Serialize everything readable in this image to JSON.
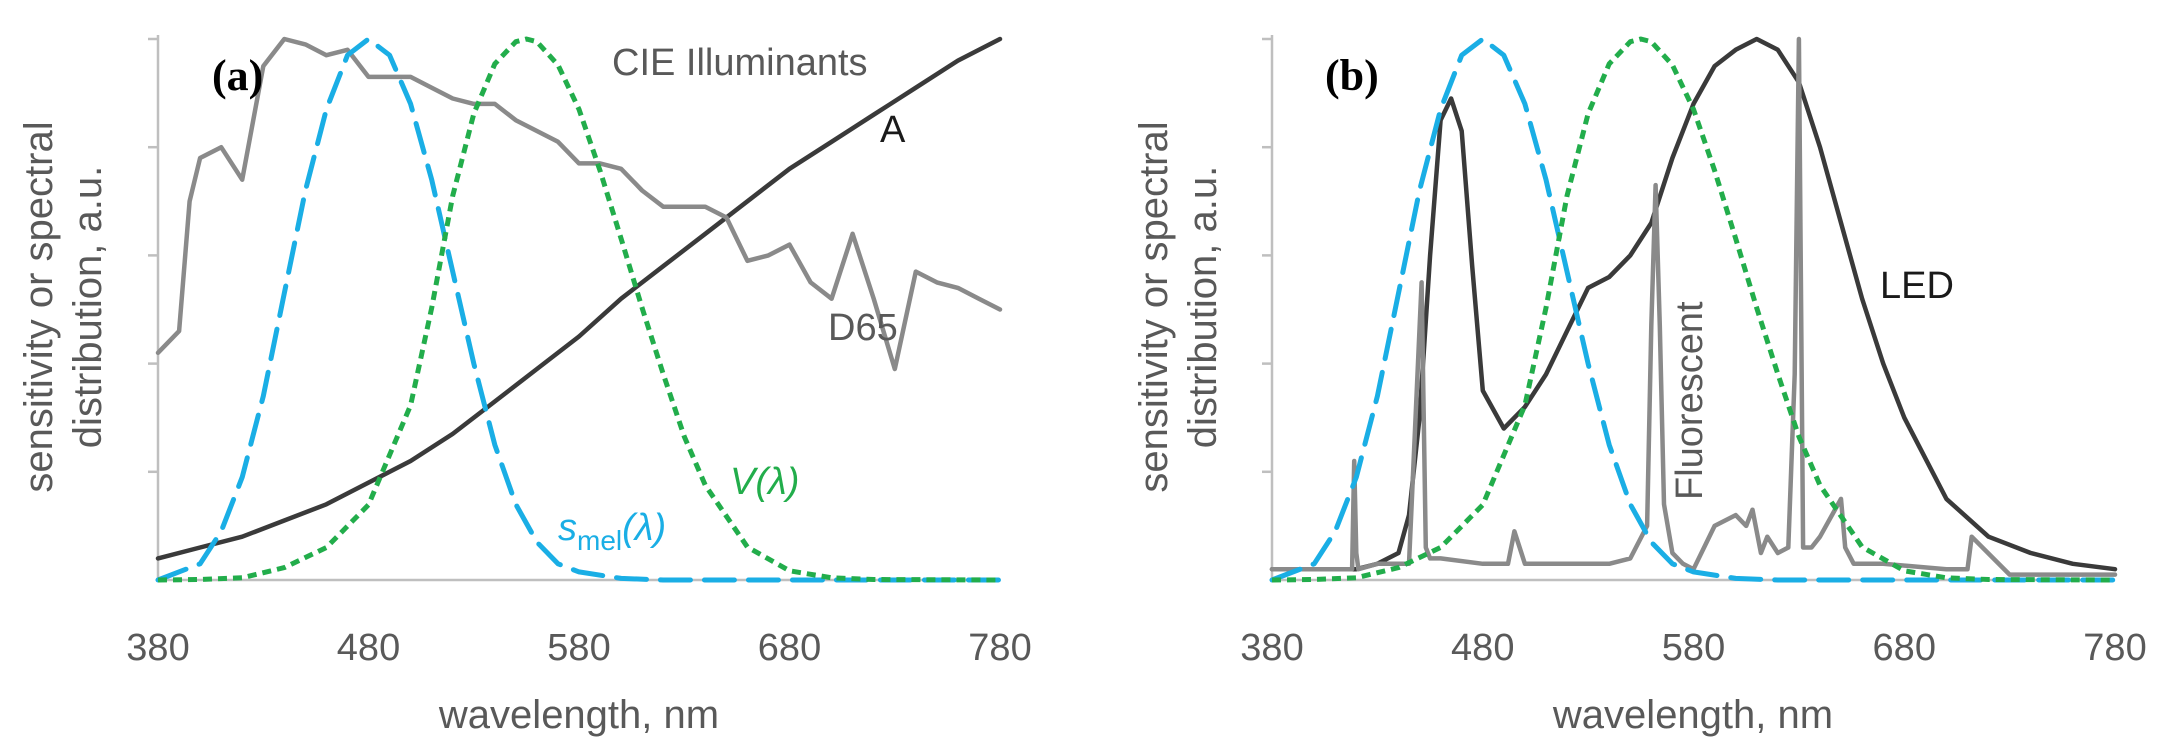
{
  "chart_data": [
    {
      "type": "line",
      "panel_label": "(a)",
      "xlabel": "wavelength, nm",
      "ylabel_lines": [
        "sensitivity or spectral",
        "distribution, a.u."
      ],
      "xlim": [
        380,
        780
      ],
      "ylim": [
        0,
        1
      ],
      "x_ticks": [
        380,
        480,
        580,
        680,
        780
      ],
      "y_gridlines": false,
      "annotations": {
        "title": "CIE Illuminants",
        "a_label": "A",
        "d65_label": "D65",
        "smel_main": "s",
        "smel_sub": "mel",
        "smel_tail": "(λ)",
        "v_main": "V",
        "v_tail": "(λ)"
      },
      "series": [
        {
          "name": "CIE Illuminant A",
          "color": "#3a3a3a",
          "style": "solid",
          "x": [
            380,
            400,
            420,
            440,
            460,
            480,
            500,
            520,
            540,
            560,
            580,
            600,
            620,
            640,
            660,
            680,
            700,
            720,
            740,
            760,
            780
          ],
          "values": [
            0.04,
            0.06,
            0.08,
            0.11,
            0.14,
            0.18,
            0.22,
            0.27,
            0.33,
            0.39,
            0.45,
            0.52,
            0.58,
            0.64,
            0.7,
            0.76,
            0.81,
            0.86,
            0.91,
            0.96,
            1.0
          ]
        },
        {
          "name": "CIE Illuminant D65",
          "color": "#8a8a8a",
          "style": "solid",
          "x": [
            380,
            390,
            395,
            400,
            410,
            420,
            430,
            440,
            450,
            460,
            470,
            480,
            490,
            500,
            510,
            520,
            530,
            540,
            550,
            560,
            570,
            580,
            590,
            600,
            610,
            620,
            630,
            640,
            650,
            660,
            670,
            680,
            690,
            700,
            710,
            720,
            730,
            740,
            750,
            760,
            770,
            780
          ],
          "values": [
            0.42,
            0.46,
            0.7,
            0.78,
            0.8,
            0.74,
            0.95,
            1.0,
            0.99,
            0.97,
            0.98,
            0.93,
            0.93,
            0.93,
            0.91,
            0.89,
            0.88,
            0.88,
            0.85,
            0.83,
            0.81,
            0.77,
            0.77,
            0.76,
            0.72,
            0.69,
            0.69,
            0.69,
            0.67,
            0.59,
            0.6,
            0.62,
            0.55,
            0.52,
            0.64,
            0.52,
            0.39,
            0.57,
            0.55,
            0.54,
            0.52,
            0.5
          ]
        },
        {
          "name": "s_mel(λ)",
          "color": "#1aaee5",
          "style": "dashed",
          "x": [
            380,
            400,
            410,
            420,
            430,
            440,
            450,
            460,
            470,
            480,
            490,
            500,
            510,
            520,
            530,
            540,
            550,
            560,
            570,
            580,
            600,
            620,
            640,
            660,
            700,
            780
          ],
          "values": [
            0.0,
            0.03,
            0.09,
            0.19,
            0.34,
            0.53,
            0.72,
            0.87,
            0.97,
            1.0,
            0.97,
            0.88,
            0.74,
            0.57,
            0.4,
            0.25,
            0.14,
            0.07,
            0.03,
            0.015,
            0.003,
            0.0,
            0.0,
            0.0,
            0.0,
            0.0
          ]
        },
        {
          "name": "V(λ)",
          "color": "#22ad4b",
          "style": "dotted",
          "x": [
            380,
            400,
            420,
            440,
            460,
            480,
            500,
            510,
            520,
            530,
            540,
            550,
            555,
            560,
            570,
            580,
            590,
            600,
            610,
            620,
            630,
            640,
            660,
            680,
            700,
            720,
            780
          ],
          "values": [
            0.0,
            0.001,
            0.004,
            0.023,
            0.06,
            0.139,
            0.323,
            0.503,
            0.71,
            0.862,
            0.954,
            0.995,
            1.0,
            0.995,
            0.952,
            0.87,
            0.757,
            0.631,
            0.503,
            0.381,
            0.265,
            0.175,
            0.061,
            0.017,
            0.004,
            0.001,
            0.0
          ]
        }
      ]
    },
    {
      "type": "line",
      "panel_label": "(b)",
      "xlabel": "wavelength, nm",
      "ylabel_lines": [
        "sensitivity or spectral",
        "distribution, a.u."
      ],
      "xlim": [
        380,
        780
      ],
      "ylim": [
        0,
        1
      ],
      "x_ticks": [
        380,
        480,
        580,
        680,
        780
      ],
      "y_gridlines": false,
      "annotations": {
        "fluorescent_label": "Fluorescent",
        "led_label": "LED"
      },
      "series": [
        {
          "name": "LED",
          "color": "#3a3a3a",
          "style": "solid",
          "x": [
            380,
            420,
            430,
            440,
            445,
            450,
            455,
            460,
            465,
            470,
            475,
            480,
            490,
            500,
            510,
            520,
            530,
            540,
            550,
            560,
            570,
            580,
            590,
            600,
            610,
            620,
            630,
            640,
            650,
            660,
            670,
            680,
            700,
            720,
            740,
            760,
            780
          ],
          "values": [
            0.02,
            0.02,
            0.03,
            0.05,
            0.12,
            0.3,
            0.6,
            0.85,
            0.89,
            0.83,
            0.58,
            0.35,
            0.28,
            0.32,
            0.38,
            0.46,
            0.54,
            0.56,
            0.6,
            0.66,
            0.78,
            0.88,
            0.95,
            0.98,
            1.0,
            0.98,
            0.92,
            0.8,
            0.66,
            0.52,
            0.4,
            0.3,
            0.15,
            0.08,
            0.05,
            0.03,
            0.02
          ]
        },
        {
          "name": "Fluorescent",
          "color": "#8a8a8a",
          "style": "solid",
          "x": [
            380,
            400,
            418,
            419,
            420,
            421,
            430,
            445,
            451,
            453,
            455,
            460,
            480,
            492,
            495,
            500,
            520,
            540,
            550,
            558,
            560,
            562,
            564,
            566,
            570,
            575,
            580,
            590,
            600,
            605,
            608,
            612,
            615,
            620,
            625,
            628,
            630,
            632,
            636,
            640,
            650,
            652,
            656,
            670,
            700,
            710,
            712,
            730,
            760,
            780
          ],
          "values": [
            0.02,
            0.02,
            0.02,
            0.22,
            0.05,
            0.02,
            0.03,
            0.03,
            0.55,
            0.06,
            0.04,
            0.04,
            0.03,
            0.03,
            0.09,
            0.03,
            0.03,
            0.03,
            0.04,
            0.1,
            0.47,
            0.73,
            0.47,
            0.14,
            0.05,
            0.03,
            0.02,
            0.1,
            0.12,
            0.1,
            0.13,
            0.05,
            0.08,
            0.05,
            0.06,
            0.38,
            1.0,
            0.06,
            0.06,
            0.08,
            0.15,
            0.06,
            0.03,
            0.03,
            0.02,
            0.02,
            0.08,
            0.01,
            0.01,
            0.01
          ]
        },
        {
          "name": "s_mel(λ)",
          "color": "#1aaee5",
          "style": "dashed",
          "x": [
            380,
            400,
            410,
            420,
            430,
            440,
            450,
            460,
            470,
            480,
            490,
            500,
            510,
            520,
            530,
            540,
            550,
            560,
            570,
            580,
            600,
            620,
            640,
            660,
            700,
            780
          ],
          "values": [
            0.0,
            0.03,
            0.09,
            0.19,
            0.34,
            0.53,
            0.72,
            0.87,
            0.97,
            1.0,
            0.97,
            0.88,
            0.74,
            0.57,
            0.4,
            0.25,
            0.14,
            0.07,
            0.03,
            0.015,
            0.003,
            0.0,
            0.0,
            0.0,
            0.0,
            0.0
          ]
        },
        {
          "name": "V(λ)",
          "color": "#22ad4b",
          "style": "dotted",
          "x": [
            380,
            400,
            420,
            440,
            460,
            480,
            500,
            510,
            520,
            530,
            540,
            550,
            555,
            560,
            570,
            580,
            590,
            600,
            610,
            620,
            630,
            640,
            660,
            680,
            700,
            720,
            780
          ],
          "values": [
            0.0,
            0.001,
            0.004,
            0.023,
            0.06,
            0.139,
            0.323,
            0.503,
            0.71,
            0.862,
            0.954,
            0.995,
            1.0,
            0.995,
            0.952,
            0.87,
            0.757,
            0.631,
            0.503,
            0.381,
            0.265,
            0.175,
            0.061,
            0.017,
            0.004,
            0.001,
            0.0
          ]
        }
      ]
    }
  ]
}
